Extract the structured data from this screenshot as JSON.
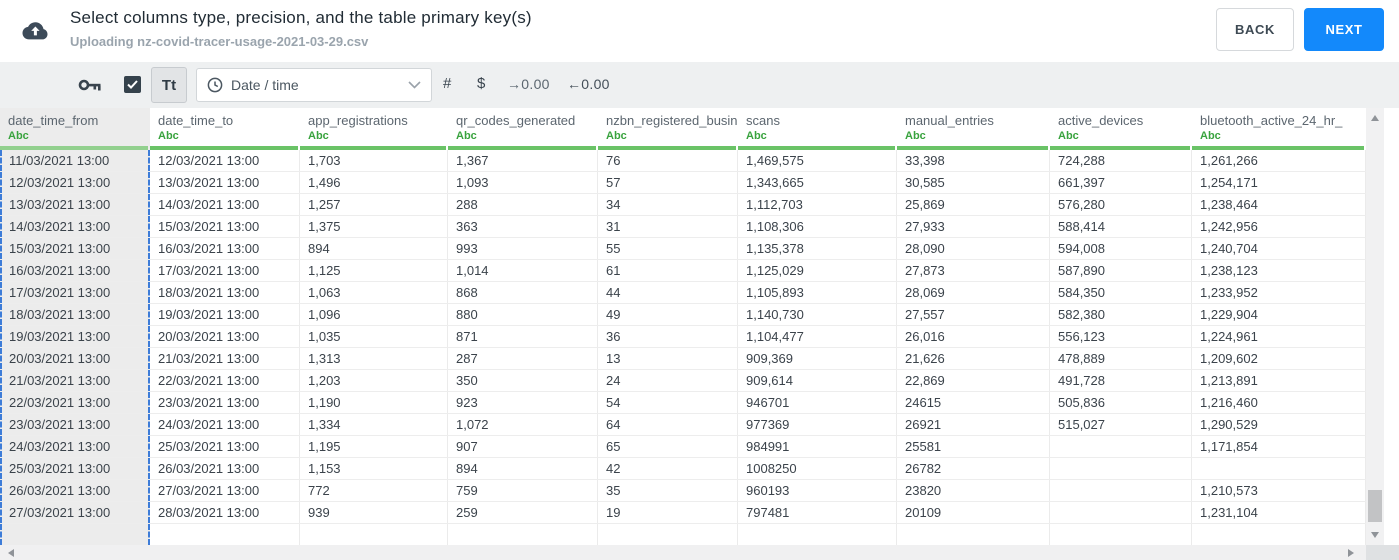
{
  "header": {
    "title": "Select columns type, precision, and the table primary key(s)",
    "subtitle": "Uploading nz-covid-tracer-usage-2021-03-29.csv",
    "back_label": "BACK",
    "next_label": "NEXT"
  },
  "toolbar": {
    "text_type_label": "Tt",
    "type_dropdown_value": "Date / time",
    "numeric_label": "#",
    "currency_label": "$",
    "precision_right_label": "→0.00",
    "precision_left_label": "←0.00"
  },
  "colors": {
    "accent_blue": "#1389fb",
    "type_green": "#39a33e",
    "header_underline_green": "#6ac367",
    "selected_column_dash_blue": "#3d7cd8",
    "selected_column_bg": "#ececec",
    "toolbar_bg": "#eef0f1"
  },
  "table": {
    "columns": [
      {
        "name": "date_time_from",
        "type_label": "Abc",
        "selected": true
      },
      {
        "name": "date_time_to",
        "type_label": "Abc",
        "selected": false
      },
      {
        "name": "app_registrations",
        "type_label": "Abc",
        "selected": false
      },
      {
        "name": "qr_codes_generated",
        "type_label": "Abc",
        "selected": false
      },
      {
        "name": "nzbn_registered_busine",
        "type_label": "Abc",
        "selected": false
      },
      {
        "name": "scans",
        "type_label": "Abc",
        "selected": false
      },
      {
        "name": "manual_entries",
        "type_label": "Abc",
        "selected": false
      },
      {
        "name": "active_devices",
        "type_label": "Abc",
        "selected": false
      },
      {
        "name": "bluetooth_active_24_hr_",
        "type_label": "Abc",
        "selected": false
      }
    ],
    "rows": [
      [
        "11/03/2021 13:00",
        "12/03/2021 13:00",
        "1,703",
        "1,367",
        "76",
        "1,469,575",
        "33,398",
        "724,288",
        "1,261,266"
      ],
      [
        "12/03/2021 13:00",
        "13/03/2021 13:00",
        "1,496",
        "1,093",
        "57",
        "1,343,665",
        "30,585",
        "661,397",
        "1,254,171"
      ],
      [
        "13/03/2021 13:00",
        "14/03/2021 13:00",
        "1,257",
        "288",
        "34",
        "1,112,703",
        "25,869",
        "576,280",
        "1,238,464"
      ],
      [
        "14/03/2021 13:00",
        "15/03/2021 13:00",
        "1,375",
        "363",
        "31",
        "1,108,306",
        "27,933",
        "588,414",
        "1,242,956"
      ],
      [
        "15/03/2021 13:00",
        "16/03/2021 13:00",
        "894",
        "993",
        "55",
        "1,135,378",
        "28,090",
        "594,008",
        "1,240,704"
      ],
      [
        "16/03/2021 13:00",
        "17/03/2021 13:00",
        "1,125",
        "1,014",
        "61",
        "1,125,029",
        "27,873",
        "587,890",
        "1,238,123"
      ],
      [
        "17/03/2021 13:00",
        "18/03/2021 13:00",
        "1,063",
        "868",
        "44",
        "1,105,893",
        "28,069",
        "584,350",
        "1,233,952"
      ],
      [
        "18/03/2021 13:00",
        "19/03/2021 13:00",
        "1,096",
        "880",
        "49",
        "1,140,730",
        "27,557",
        "582,380",
        "1,229,904"
      ],
      [
        "19/03/2021 13:00",
        "20/03/2021 13:00",
        "1,035",
        "871",
        "36",
        "1,104,477",
        "26,016",
        "556,123",
        "1,224,961"
      ],
      [
        "20/03/2021 13:00",
        "21/03/2021 13:00",
        "1,313",
        "287",
        "13",
        "909,369",
        "21,626",
        "478,889",
        "1,209,602"
      ],
      [
        "21/03/2021 13:00",
        "22/03/2021 13:00",
        "1,203",
        "350",
        "24",
        "909,614",
        "22,869",
        "491,728",
        "1,213,891"
      ],
      [
        "22/03/2021 13:00",
        "23/03/2021 13:00",
        "1,190",
        "923",
        "54",
        "946701",
        "24615",
        "505,836",
        "1,216,460"
      ],
      [
        "23/03/2021 13:00",
        "24/03/2021 13:00",
        "1,334",
        "1,072",
        "64",
        "977369",
        "26921",
        "515,027",
        "1,290,529"
      ],
      [
        "24/03/2021 13:00",
        "25/03/2021 13:00",
        "1,195",
        "907",
        "65",
        "984991",
        "25581",
        "",
        "1,171,854"
      ],
      [
        "25/03/2021 13:00",
        "26/03/2021 13:00",
        "1,153",
        "894",
        "42",
        "1008250",
        "26782",
        "",
        ""
      ],
      [
        "26/03/2021 13:00",
        "27/03/2021 13:00",
        "772",
        "759",
        "35",
        "960193",
        "23820",
        "",
        "1,210,573"
      ],
      [
        "27/03/2021 13:00",
        "28/03/2021 13:00",
        "939",
        "259",
        "19",
        "797481",
        "20109",
        "",
        "1,231,104"
      ]
    ]
  }
}
